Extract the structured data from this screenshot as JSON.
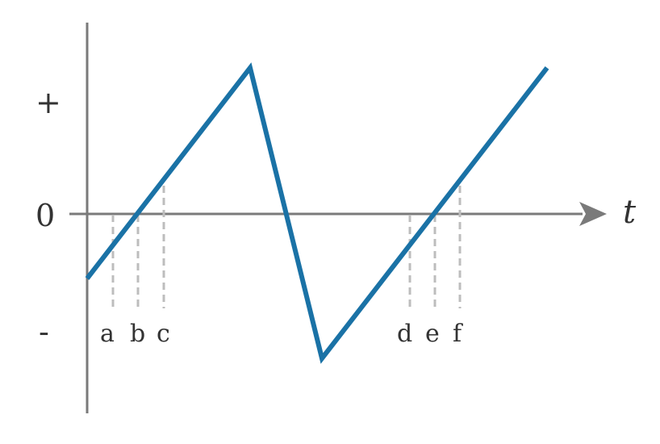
{
  "axes": {
    "y_plus_label": "+",
    "y_zero_label": "0",
    "y_minus_label": "-",
    "x_axis_label": "t"
  },
  "markers": [
    "a",
    "b",
    "c",
    "d",
    "e",
    "f"
  ],
  "colors": {
    "waveform": "#1a72a6",
    "axis": "#7a7a7a",
    "guide": "#bdbdbd",
    "text": "#333333"
  }
}
